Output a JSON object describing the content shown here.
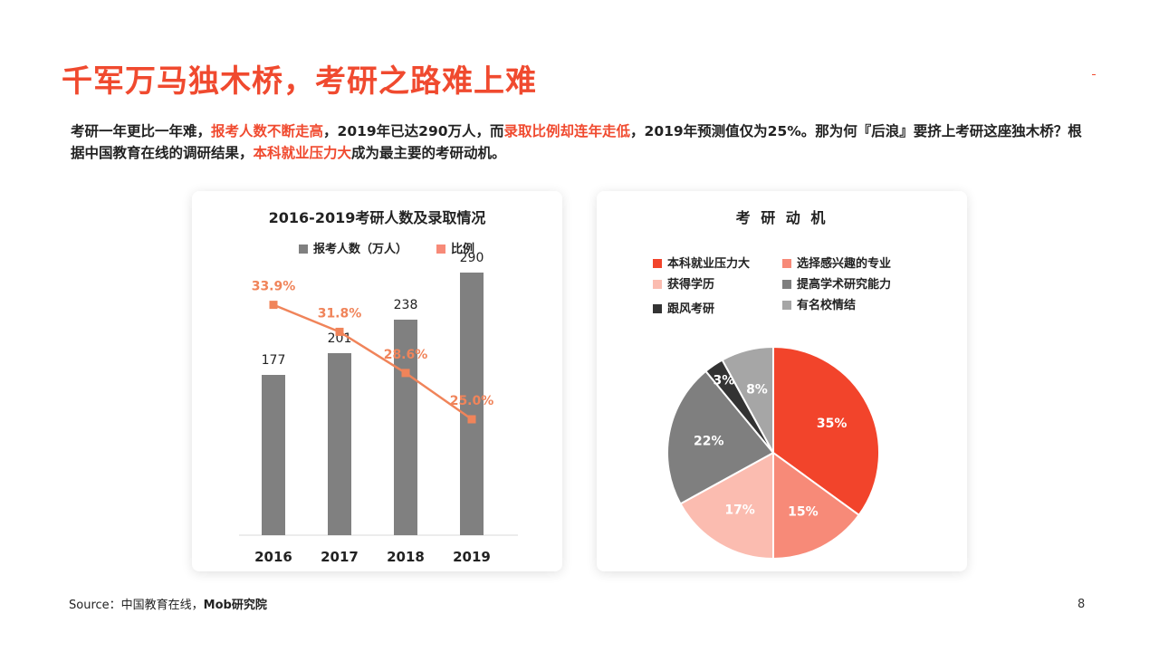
{
  "title": "千军万马独木桥，考研之路难上难",
  "intro": {
    "p1": "考研一年更比一年难，",
    "h1": "报考人数不断走高",
    "p2": "，2019年已达290万人，而",
    "h2": "录取比例却连年走低",
    "p3": "，2019年预测值仅为25%。那为何『后浪』要挤上考研这座独木桥？根 据中国教育在线的调研结果，",
    "h3": "本科就业压力大",
    "p4": "成为最主要的考研动机。"
  },
  "colors": {
    "accent": "#f04a2f",
    "bar": "#808080",
    "line": "#f0845a",
    "line_label": "#f0845a"
  },
  "chart_data": [
    {
      "type": "bar",
      "title": "2016-2019考研人数及录取情况",
      "categories": [
        "2016",
        "2017",
        "2018",
        "2019"
      ],
      "series": [
        {
          "name": "报考人数（万人）",
          "type": "bar",
          "values": [
            177,
            201,
            238,
            290
          ],
          "labels": [
            "177",
            "201",
            "238",
            "290"
          ]
        },
        {
          "name": "比例",
          "type": "line",
          "values": [
            33.9,
            31.8,
            28.6,
            25.0
          ],
          "labels": [
            "33.9%",
            "31.8%",
            "28.6%",
            "25.0%"
          ]
        }
      ],
      "ylim": [
        0,
        330
      ],
      "y2lim": [
        0,
        36
      ],
      "grid": false,
      "legend": "top-center"
    },
    {
      "type": "pie",
      "title": "考 研 动 机",
      "slices": [
        {
          "name": "本科就业压力大",
          "value": 35,
          "label": "35%",
          "color": "#f2442b"
        },
        {
          "name": "选择感兴趣的专业",
          "value": 15,
          "label": "15%",
          "color": "#f78a78"
        },
        {
          "name": "获得学历",
          "value": 17,
          "label": "17%",
          "color": "#fbbcb0"
        },
        {
          "name": "提高学术研究能力",
          "value": 22,
          "label": "22%",
          "color": "#7f7f7f"
        },
        {
          "name": "跟风考研",
          "value": 3,
          "label": "3%",
          "color": "#333333"
        },
        {
          "name": "有名校情结",
          "value": 8,
          "label": "8%",
          "color": "#a6a6a6"
        }
      ],
      "legend": "top"
    }
  ],
  "source": {
    "prefix": "Source：中国教育在线，",
    "bold": "Mob研究院"
  },
  "page_number": "8"
}
